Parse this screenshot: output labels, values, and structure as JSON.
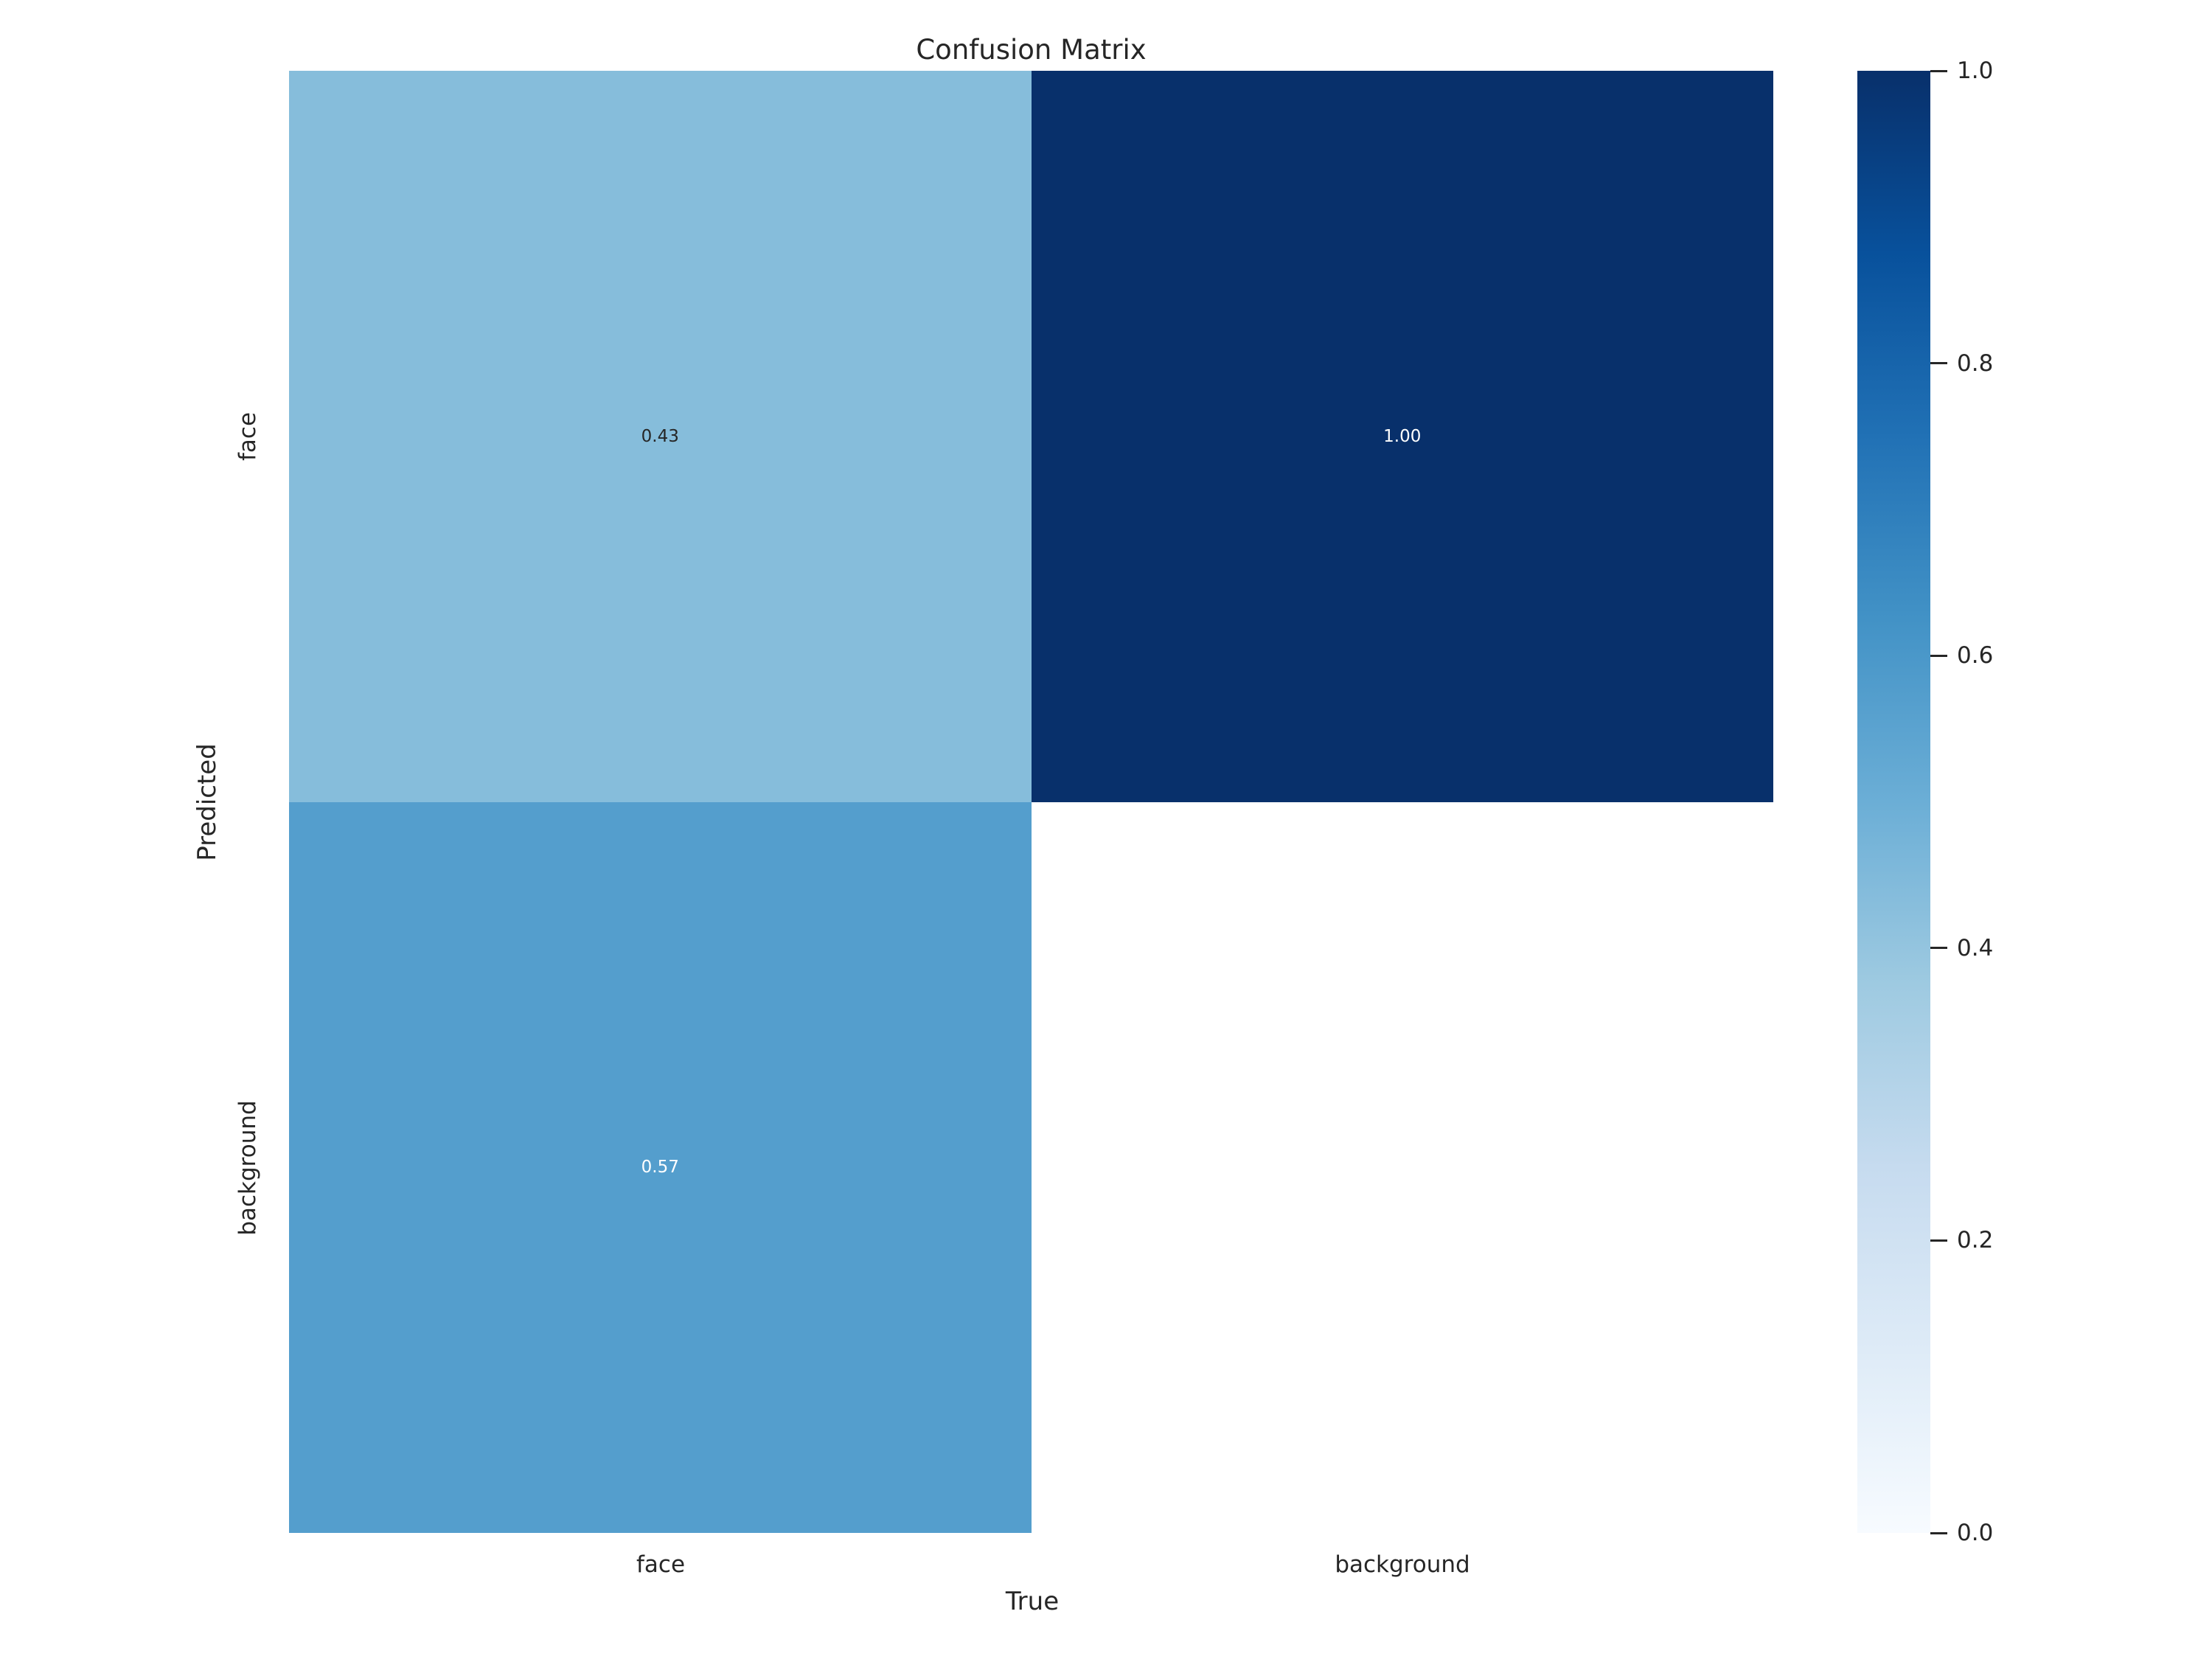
{
  "figure": {
    "background": "#ffffff",
    "text_color": "#262626"
  },
  "chart_data": {
    "type": "heatmap",
    "title": "Confusion Matrix",
    "xlabel": "True",
    "ylabel": "Predicted",
    "x_tick_labels": [
      "face",
      "background"
    ],
    "y_tick_labels": [
      "face",
      "background"
    ],
    "matrix": [
      [
        0.43,
        1.0
      ],
      [
        0.57,
        null
      ]
    ],
    "cell_annotations": [
      [
        "0.43",
        "1.00"
      ],
      [
        "0.57",
        ""
      ]
    ],
    "cell_colors": [
      [
        "#86bddb",
        "#08306b"
      ],
      [
        "#549ecd",
        "#ffffff"
      ]
    ],
    "cell_text_colors": [
      [
        "#262626",
        "#ffffff"
      ],
      [
        "#ffffff",
        "#262626"
      ]
    ],
    "value_range": [
      0.0,
      1.0
    ],
    "colormap": "Blues",
    "colormap_stops": [
      [
        0.0,
        "#f7fbff"
      ],
      [
        0.125,
        "#deebf7"
      ],
      [
        0.25,
        "#c6dbef"
      ],
      [
        0.375,
        "#9ecae1"
      ],
      [
        0.5,
        "#6baed6"
      ],
      [
        0.625,
        "#4292c6"
      ],
      [
        0.75,
        "#2171b5"
      ],
      [
        0.875,
        "#08519c"
      ],
      [
        1.0,
        "#08306b"
      ]
    ],
    "colorbar_tick_labels": [
      "1.0",
      "0.8",
      "0.6",
      "0.4",
      "0.2",
      "0.0"
    ],
    "colorbar_position": "right",
    "grid": false,
    "legend_position": "none"
  }
}
